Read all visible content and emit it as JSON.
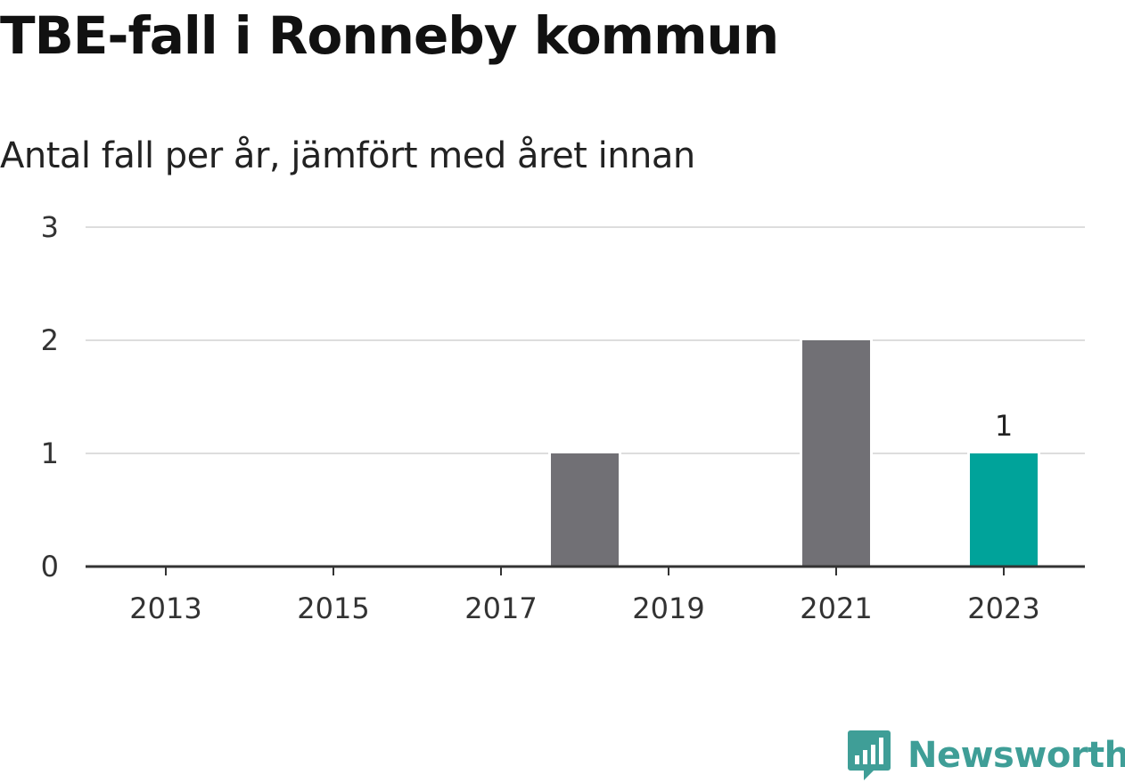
{
  "header": {
    "title": "TBE-fall i Ronneby kommun",
    "subtitle": "Antal fall per år, jämfört med året innan"
  },
  "brand": {
    "name": "Newsworthy",
    "icon": "newsworthy-logo-icon",
    "color": "#3f9e97"
  },
  "chart_data": {
    "type": "bar",
    "title": "TBE-fall i Ronneby kommun",
    "subtitle": "Antal fall per år, jämfört med året innan",
    "xlabel": "",
    "ylabel": "",
    "categories": [
      "2013",
      "2014",
      "2015",
      "2016",
      "2017",
      "2018",
      "2019",
      "2020",
      "2021",
      "2022",
      "2023"
    ],
    "values": [
      0,
      0,
      0,
      0,
      0,
      1,
      0,
      0,
      2,
      0,
      1
    ],
    "x_tick_labels": [
      "2013",
      "2015",
      "2017",
      "2019",
      "2021",
      "2023"
    ],
    "y_ticks": [
      0,
      1,
      2,
      3
    ],
    "ylim": [
      0,
      3
    ],
    "grid": true,
    "legend": "none",
    "highlight_category": "2023",
    "data_labels": [
      {
        "category": "2023",
        "text": "1"
      }
    ],
    "colors": {
      "bar": "#717075",
      "highlight": "#00a39a",
      "grid": "#dddddd",
      "axis": "#333333"
    }
  }
}
